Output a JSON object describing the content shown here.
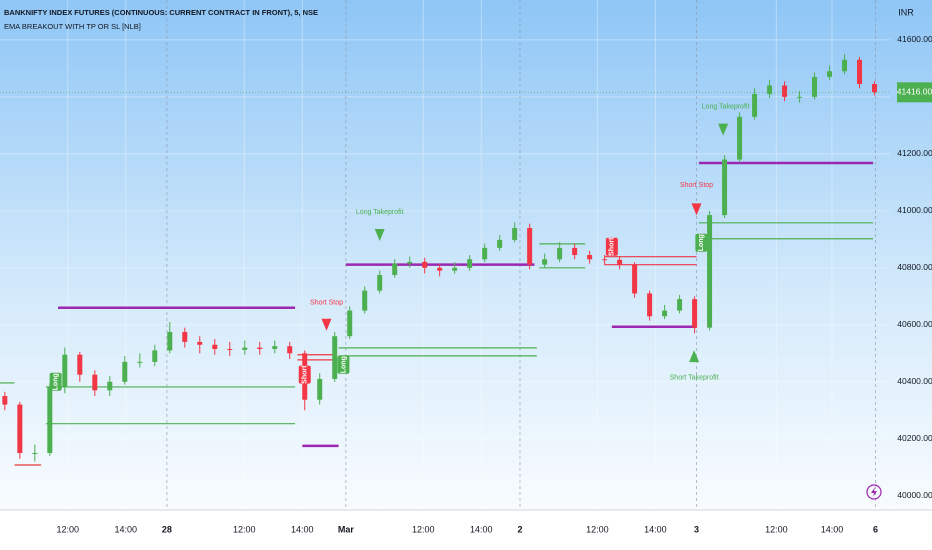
{
  "chart_data": {
    "type": "candlestick",
    "title": "BANKNIFTY INDEX FUTURES (CONTINUOUS: CURRENT CONTRACT IN FRONT), 5, NSE",
    "subtitle": "EMA BREAKOUT WITH TP OR SL [NLB]",
    "currency": "INR",
    "last_price": {
      "value": 41416,
      "label": "41416.00"
    },
    "up_color": "#4caf50",
    "down_color": "#f23645",
    "xlim": [
      0,
      368
    ],
    "ylim": [
      39950,
      41740
    ],
    "xticks": [
      {
        "value": 28,
        "label": "12:00"
      },
      {
        "value": 52,
        "label": "14:00"
      },
      {
        "value": 69,
        "label": "28"
      },
      {
        "value": 101,
        "label": "12:00"
      },
      {
        "value": 125,
        "label": "14:00"
      },
      {
        "value": 143,
        "label": "Mar"
      },
      {
        "value": 175,
        "label": "12:00"
      },
      {
        "value": 199,
        "label": "14:00"
      },
      {
        "value": 215,
        "label": "2"
      },
      {
        "value": 247,
        "label": "12:00"
      },
      {
        "value": 271,
        "label": "14:00"
      },
      {
        "value": 288,
        "label": "3"
      },
      {
        "value": 321,
        "label": "12:00"
      },
      {
        "value": 344,
        "label": "14:00"
      },
      {
        "value": 362,
        "label": "6"
      }
    ],
    "yticks": [
      {
        "value": 40000,
        "label": "40000.00"
      },
      {
        "value": 40200,
        "label": "40200.00"
      },
      {
        "value": 40400,
        "label": "40400.00"
      },
      {
        "value": 40600,
        "label": "40600.00"
      },
      {
        "value": 40800,
        "label": "40800.00"
      },
      {
        "value": 41000,
        "label": "41000.00"
      },
      {
        "value": 41200,
        "label": "41200.00"
      },
      {
        "value": 41400,
        "label": "41400.00"
      },
      {
        "value": 41600,
        "label": "41600.00"
      }
    ],
    "x": [
      2,
      8.2,
      14.4,
      20.6,
      26.8,
      33,
      39.2,
      45.4,
      51.6,
      57.8,
      64,
      70.2,
      76.4,
      82.6,
      88.8,
      95,
      101.2,
      107.4,
      113.6,
      119.8,
      126,
      132.2,
      138.4,
      144.6,
      150.8,
      157,
      163.2,
      169.4,
      175.6,
      181.8,
      188,
      194.2,
      200.4,
      206.6,
      212.8,
      219,
      225.2,
      231.4,
      237.6,
      243.8,
      250,
      256.2,
      262.4,
      268.6,
      274.8,
      281,
      287.2,
      293.4,
      299.6,
      305.8,
      312,
      318.2,
      324.4,
      330.6,
      336.8,
      343,
      349.2,
      355.4,
      361.6
    ],
    "open": [
      40350,
      40320,
      40150,
      40150,
      40380,
      40495,
      40425,
      40370,
      40400,
      40470,
      40470,
      40510,
      40575,
      40540,
      40530,
      40515,
      40512,
      40520,
      40515,
      40525,
      40500,
      40337,
      40410,
      40560,
      40650,
      40720,
      40775,
      40815,
      40821,
      40800,
      40790,
      40800,
      40830,
      40870,
      40898,
      40940,
      40811,
      40830,
      40870,
      40845,
      40830,
      40828,
      40811,
      40710,
      40630,
      40650,
      40690,
      40590,
      40985,
      41180,
      41330,
      41410,
      41440,
      41400,
      41400,
      41470,
      41490,
      41530,
      41445
    ],
    "high": [
      40365,
      40330,
      40180,
      40395,
      40520,
      40505,
      40440,
      40420,
      40490,
      40500,
      40530,
      40610,
      40590,
      40560,
      40550,
      40540,
      40545,
      40540,
      40545,
      40540,
      40510,
      40430,
      40575,
      40665,
      40735,
      40790,
      40830,
      40840,
      40835,
      40815,
      40820,
      40845,
      40885,
      40915,
      40960,
      40955,
      40850,
      40890,
      40885,
      40860,
      40845,
      40840,
      40820,
      40720,
      40670,
      40705,
      40700,
      41000,
      41195,
      41345,
      41430,
      41460,
      41455,
      41420,
      41485,
      41510,
      41550,
      41540,
      41455
    ],
    "low": [
      40300,
      40130,
      40120,
      40140,
      40360,
      40400,
      40350,
      40350,
      40390,
      40450,
      40455,
      40500,
      40520,
      40500,
      40495,
      40490,
      40495,
      40495,
      40500,
      40480,
      40300,
      40320,
      40400,
      40550,
      40640,
      40710,
      40765,
      40800,
      40780,
      40770,
      40780,
      40790,
      40820,
      40860,
      40890,
      40795,
      40800,
      40820,
      40830,
      40815,
      40810,
      40795,
      40695,
      40615,
      40620,
      40640,
      40570,
      40580,
      40975,
      41170,
      41320,
      41395,
      41385,
      41380,
      41390,
      41460,
      41480,
      41430,
      41405
    ],
    "close": [
      40320,
      40150,
      40150,
      40380,
      40495,
      40425,
      40370,
      40400,
      40470,
      40470,
      40510,
      40575,
      40540,
      40530,
      40515,
      40512,
      40520,
      40515,
      40525,
      40500,
      40337,
      40410,
      40560,
      40650,
      40720,
      40775,
      40815,
      40821,
      40800,
      40790,
      40800,
      40830,
      40870,
      40898,
      40940,
      40811,
      40830,
      40870,
      40845,
      40830,
      40828,
      40811,
      40710,
      40630,
      40650,
      40690,
      40590,
      40985,
      41180,
      41330,
      41410,
      41440,
      41400,
      41400,
      41470,
      41490,
      41530,
      41445,
      41416
    ],
    "levels": [
      {
        "x": [
          24,
          122
        ],
        "y": 40660,
        "color": "#9c27b0"
      },
      {
        "x": [
          125,
          140
        ],
        "y": 40175,
        "color": "#9c27b0"
      },
      {
        "x": [
          6,
          17
        ],
        "y": 40108,
        "color": "#e53935"
      },
      {
        "x": [
          19,
          122
        ],
        "y": 40253,
        "color": "#4caf50"
      },
      {
        "x": [
          19,
          122
        ],
        "y": 40382,
        "color": "#4caf50"
      },
      {
        "x": [
          0,
          6
        ],
        "y": 40396,
        "color": "#4caf50"
      },
      {
        "x": [
          123,
          139
        ],
        "y": 40495,
        "color": "#f23645"
      },
      {
        "x": [
          123,
          139
        ],
        "y": 40477,
        "color": "#f23645"
      },
      {
        "x": [
          140,
          222
        ],
        "y": 40519,
        "color": "#4caf50"
      },
      {
        "x": [
          140,
          222
        ],
        "y": 40491,
        "color": "#4caf50"
      },
      {
        "x": [
          143,
          221
        ],
        "y": 40811,
        "color": "#9c27b0"
      },
      {
        "x": [
          223,
          242
        ],
        "y": 40884,
        "color": "#4caf50"
      },
      {
        "x": [
          223,
          242
        ],
        "y": 40800,
        "color": "#4caf50"
      },
      {
        "x": [
          250,
          288
        ],
        "y": 40839,
        "color": "#f23645"
      },
      {
        "x": [
          250,
          288
        ],
        "y": 40811,
        "color": "#f23645"
      },
      {
        "x": [
          253,
          288
        ],
        "y": 40593,
        "color": "#9c27b0"
      },
      {
        "x": [
          289,
          361
        ],
        "y": 40958,
        "color": "#4caf50"
      },
      {
        "x": [
          289,
          361
        ],
        "y": 40902,
        "color": "#4caf50"
      },
      {
        "x": [
          289,
          361
        ],
        "y": 41168,
        "color": "#9c27b0"
      }
    ],
    "signals": [
      {
        "text": "Long",
        "x": 23,
        "y": 40400,
        "color": "#4caf50",
        "kind": "box"
      },
      {
        "text": "Short",
        "x": 126,
        "y": 40425,
        "color": "#f23645",
        "kind": "box"
      },
      {
        "text": "Long",
        "x": 142,
        "y": 40460,
        "color": "#4caf50",
        "kind": "box"
      },
      {
        "text": "Short",
        "x": 253,
        "y": 40874,
        "color": "#f23645",
        "kind": "box"
      },
      {
        "text": "Long",
        "x": 290,
        "y": 40888,
        "color": "#4caf50",
        "kind": "box"
      },
      {
        "text": "Short Stop",
        "x": 135,
        "y": 40677,
        "color": "#f23645",
        "kind": "label"
      },
      {
        "text": "Long Takeprofit",
        "x": 157,
        "y": 40996,
        "color": "#4caf50",
        "kind": "label"
      },
      {
        "text": "Short Takeprofit",
        "x": 287,
        "y": 40414,
        "color": "#4caf50",
        "kind": "label"
      },
      {
        "text": "Short Stop",
        "x": 288,
        "y": 41091,
        "color": "#f23645",
        "kind": "label"
      },
      {
        "text": "Long Takeprofit",
        "x": 300,
        "y": 41365,
        "color": "#4caf50",
        "kind": "label"
      }
    ],
    "arrows": [
      {
        "x": 135,
        "y": 40600,
        "dir": "down",
        "color": "#f23645"
      },
      {
        "x": 157,
        "y": 40915,
        "dir": "down",
        "color": "#4caf50"
      },
      {
        "x": 287,
        "y": 40490,
        "dir": "up",
        "color": "#4caf50"
      },
      {
        "x": 288,
        "y": 41005,
        "dir": "down",
        "color": "#f23645"
      },
      {
        "x": 299,
        "y": 41285,
        "dir": "down",
        "color": "#4caf50"
      }
    ]
  }
}
